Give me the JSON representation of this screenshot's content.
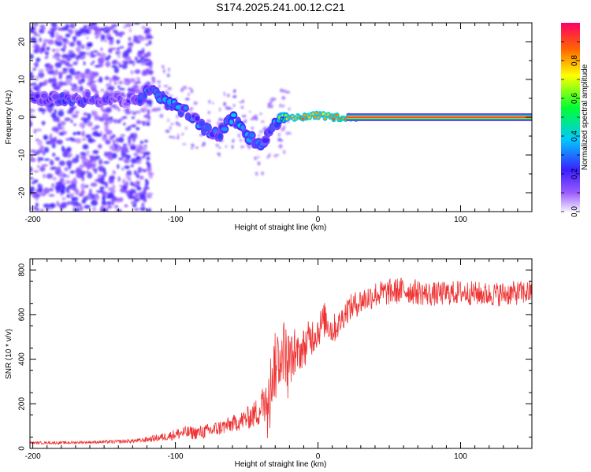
{
  "title": "S174.2025.241.00.12.C21",
  "chart_data": [
    {
      "type": "heatmap",
      "xlabel": "Height of straight line (km)",
      "ylabel": "Frequency (Hz)",
      "xlim": [
        -202,
        150
      ],
      "ylim": [
        -25,
        25
      ],
      "xticks": [
        -200,
        -100,
        0,
        100
      ],
      "yticks": [
        -20,
        -10,
        0,
        10,
        20
      ],
      "colorbar": {
        "label": "Normalized spectral amplitude",
        "range": [
          0,
          1
        ],
        "ticks": [
          "0.0",
          "0.2",
          "0.4",
          "0.6",
          "0.8"
        ]
      },
      "ridge": {
        "x": [
          -195,
          -180,
          -165,
          -150,
          -135,
          -125,
          -118,
          -110,
          -100,
          -90,
          -80,
          -70,
          -60,
          -50,
          -40,
          -35,
          -30,
          -25,
          -20,
          -10,
          0,
          10,
          20,
          30,
          50,
          100,
          150
        ],
        "freq": [
          5,
          5,
          5,
          5,
          4.5,
          5,
          7,
          5,
          3,
          1,
          -3,
          -5,
          0,
          -5,
          -7,
          -5,
          -2,
          -1,
          0,
          0,
          0.5,
          0,
          0,
          0,
          0,
          0,
          0
        ],
        "amp": [
          0.18,
          0.2,
          0.22,
          0.2,
          0.15,
          0.22,
          0.3,
          0.32,
          0.3,
          0.3,
          0.3,
          0.25,
          0.3,
          0.35,
          0.3,
          0.28,
          0.3,
          0.5,
          0.85,
          0.9,
          0.85,
          0.9,
          0.95,
          1.0,
          1.0,
          1.0,
          1.0
        ]
      }
    },
    {
      "type": "line",
      "xlabel": "Height of straight line (km)",
      "ylabel": "SNR (10 * v/v)",
      "xlim": [
        -202,
        150
      ],
      "ylim": [
        0,
        850
      ],
      "xticks": [
        -200,
        -100,
        0,
        100
      ],
      "yticks": [
        0,
        200,
        400,
        600,
        800
      ],
      "series": [
        {
          "name": "SNR",
          "color": "#ee3333",
          "x": [
            -202,
            -180,
            -160,
            -140,
            -125,
            -115,
            -105,
            -95,
            -85,
            -75,
            -65,
            -55,
            -45,
            -40,
            -35,
            -30,
            -25,
            -20,
            -15,
            -10,
            -5,
            0,
            5,
            10,
            15,
            20,
            30,
            40,
            50,
            60,
            80,
            100,
            120,
            150
          ],
          "y": [
            25,
            25,
            28,
            30,
            35,
            45,
            55,
            70,
            70,
            80,
            100,
            120,
            150,
            180,
            250,
            380,
            450,
            400,
            420,
            450,
            500,
            530,
            580,
            530,
            560,
            620,
            660,
            690,
            700,
            710,
            690,
            700,
            690,
            700
          ],
          "noise": [
            6,
            6,
            6,
            8,
            10,
            15,
            20,
            30,
            30,
            35,
            35,
            40,
            60,
            80,
            120,
            150,
            150,
            120,
            80,
            90,
            90,
            80,
            80,
            70,
            60,
            60,
            60,
            60,
            60,
            60,
            55,
            55,
            55,
            55
          ]
        }
      ]
    }
  ]
}
